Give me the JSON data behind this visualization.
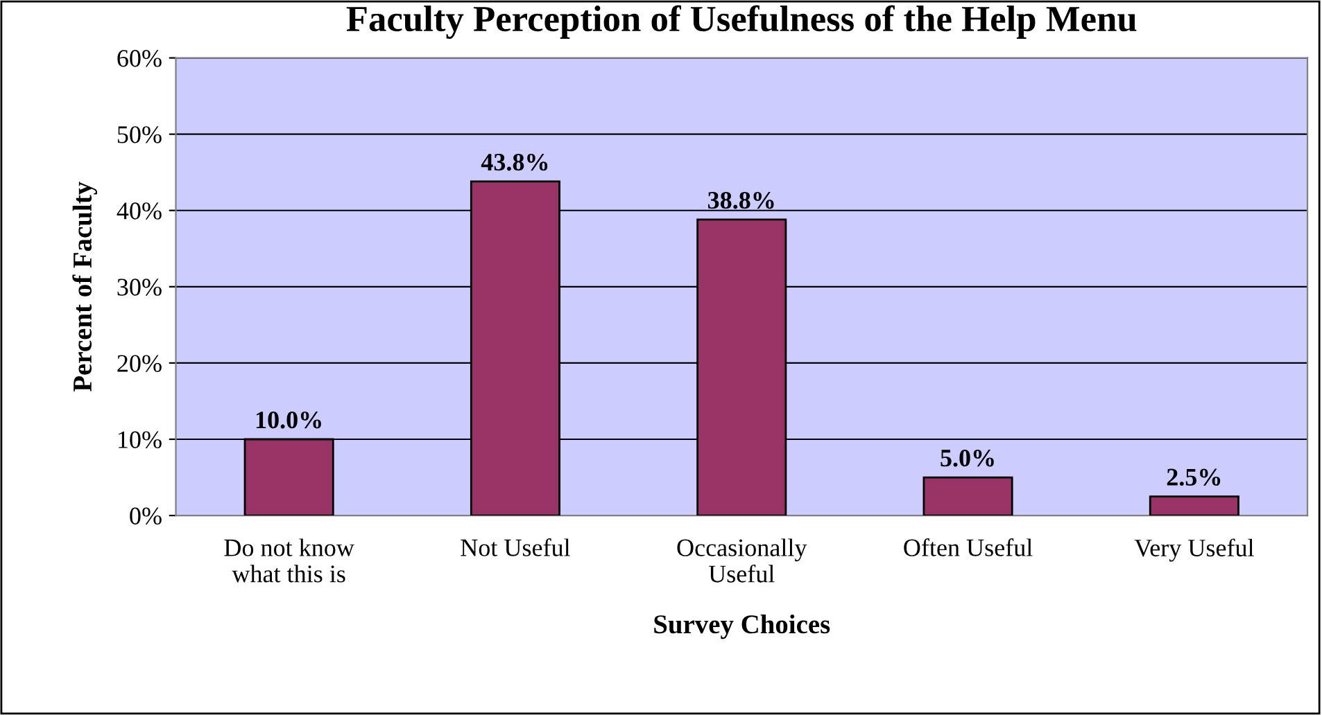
{
  "chart_data": {
    "type": "bar",
    "title": "Faculty Perception of Usefulness of the Help Menu",
    "xlabel": "Survey Choices",
    "ylabel": "Percent of Faculty",
    "categories": [
      "Do not know\nwhat this is",
      "Not Useful",
      "Occasionally\nUseful",
      "Often Useful",
      "Very Useful"
    ],
    "values": [
      10.0,
      43.8,
      38.8,
      5.0,
      2.5
    ],
    "value_labels": [
      "10.0%",
      "43.8%",
      "38.8%",
      "5.0%",
      "2.5%"
    ],
    "color": "#993366",
    "ylim": [
      0,
      60
    ],
    "yticks": [
      {
        "value": 0,
        "label": "0%"
      },
      {
        "value": 10,
        "label": "10%"
      },
      {
        "value": 20,
        "label": "20%"
      },
      {
        "value": 30,
        "label": "30%"
      },
      {
        "value": 40,
        "label": "40%"
      },
      {
        "value": 50,
        "label": "50%"
      },
      {
        "value": 60,
        "label": "60%"
      }
    ],
    "grid": "y",
    "legend": false
  }
}
